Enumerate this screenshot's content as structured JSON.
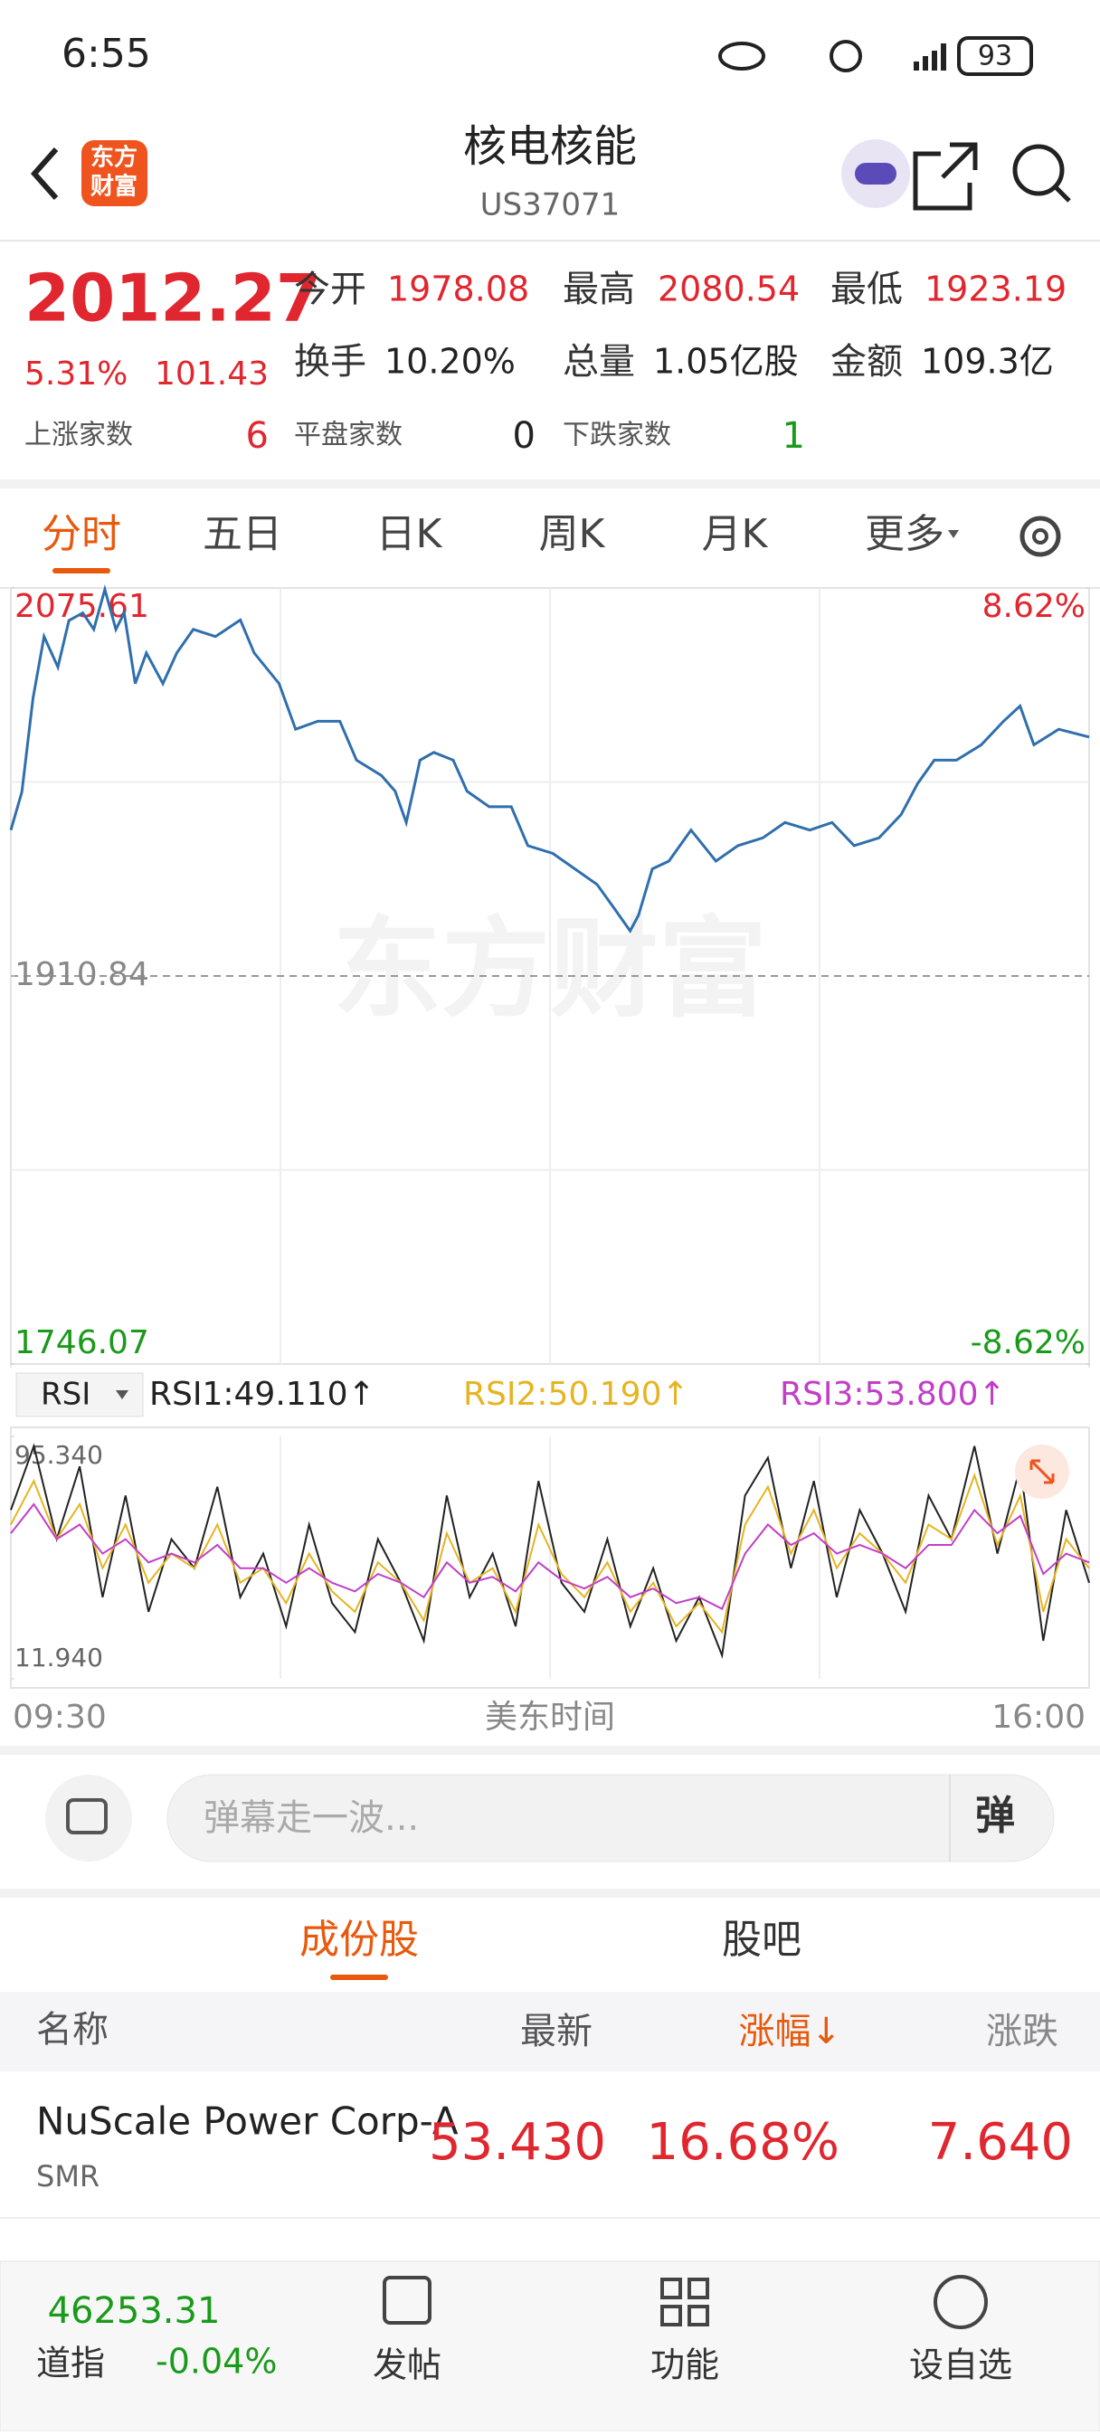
{
  "status_bar": {
    "time": "6:55",
    "battery": "93"
  },
  "header": {
    "logo": [
      "东方",
      "财富"
    ],
    "title": "核电核能",
    "code": "US37071"
  },
  "quote": {
    "price": "2012.27",
    "change_pct": "5.31%",
    "change": "101.43",
    "stats": [
      {
        "label": "今开",
        "value": "1978.08"
      },
      {
        "label": "最高",
        "value": "2080.54"
      },
      {
        "label": "最低",
        "value": "1923.19"
      },
      {
        "label": "换手",
        "value": "10.20%"
      },
      {
        "label": "总量",
        "value": "1.05亿股"
      },
      {
        "label": "金额",
        "value": "109.3亿"
      }
    ],
    "breadth": [
      {
        "label": "上涨家数",
        "value": "6"
      },
      {
        "label": "平盘家数",
        "value": "0"
      },
      {
        "label": "下跌家数",
        "value": "1"
      }
    ]
  },
  "tabs": [
    "分时",
    "五日",
    "日K",
    "周K",
    "月K",
    "更多"
  ],
  "chart_data": [
    {
      "type": "line",
      "watermark": "东方财富",
      "xlabel": "美东时间",
      "grid": true,
      "xlim": [
        0,
        390
      ],
      "xticks": [
        {
          "value": 0,
          "label": "09:30"
        },
        {
          "value": 390,
          "label": "16:00"
        }
      ],
      "ylim": [
        1746.07,
        2075.61
      ],
      "yticks": [
        1746.07,
        1910.84,
        2075.61
      ],
      "baseline": 1910.84,
      "y2lim": [
        -8.62,
        8.62
      ],
      "y2ticks": [
        {
          "value": -8.62,
          "label": "-8.62%"
        },
        {
          "value": 8.62,
          "label": "8.62%"
        }
      ],
      "x": [
        0,
        4,
        8,
        12,
        17,
        21,
        26,
        30,
        34,
        38,
        41,
        45,
        49,
        55,
        60,
        66,
        74,
        83,
        88,
        97,
        103,
        111,
        119,
        125,
        134,
        139,
        143,
        148,
        153,
        160,
        165,
        173,
        181,
        187,
        196,
        204,
        212,
        218,
        224,
        227,
        232,
        238,
        246,
        255,
        263,
        272,
        280,
        289,
        297,
        305,
        314,
        322,
        328,
        334,
        342,
        351,
        359,
        365,
        370,
        379,
        390
      ],
      "series": [
        {
          "color": "#2f6fad",
          "values": [
            1972.8,
            1989,
            2028.8,
            2055,
            2042,
            2061.8,
            2065,
            2058,
            2075,
            2058,
            2065,
            2035,
            2048,
            2035,
            2048,
            2058,
            2055,
            2062,
            2048,
            2035,
            2015.6,
            2019,
            2019,
            2002.5,
            1996,
            1989.3,
            1976,
            2002.5,
            2005.8,
            2002.5,
            1989.3,
            1982.7,
            1982.7,
            1966.2,
            1962.9,
            1956.3,
            1949.7,
            1939.9,
            1930,
            1936.6,
            1956.3,
            1959.6,
            1972.8,
            1959.6,
            1966.2,
            1969.5,
            1976,
            1972.8,
            1976,
            1966.2,
            1969.5,
            1979.4,
            1992.6,
            2002.5,
            2002.5,
            2009,
            2019,
            2025.5,
            2009,
            2015.6,
            2012.3
          ]
        }
      ]
    },
    {
      "type": "line",
      "indicator": "RSI",
      "ylim": [
        11.94,
        95.34
      ],
      "yticks": [
        {
          "value": 95.34,
          "label": "95.340"
        },
        {
          "value": 11.94,
          "label": "11.940"
        }
      ],
      "series": [
        {
          "name": "RSI1:49.110↑",
          "color": "#222222",
          "values": [
            70,
            92,
            60,
            85,
            40,
            75,
            35,
            60,
            50,
            78,
            40,
            55,
            30,
            65,
            38,
            28,
            60,
            45,
            25,
            75,
            40,
            55,
            30,
            80,
            45,
            35,
            60,
            30,
            50,
            25,
            40,
            20,
            75,
            88,
            50,
            80,
            40,
            70,
            55,
            35,
            75,
            60,
            92,
            55,
            85,
            25,
            70,
            45
          ]
        },
        {
          "name": "RSI2:50.190↑",
          "color": "#e6b422",
          "values": [
            65,
            80,
            60,
            72,
            50,
            65,
            45,
            55,
            50,
            65,
            45,
            50,
            38,
            55,
            42,
            35,
            52,
            45,
            32,
            62,
            45,
            50,
            35,
            65,
            48,
            40,
            52,
            35,
            45,
            30,
            38,
            28,
            65,
            78,
            55,
            70,
            50,
            62,
            55,
            45,
            65,
            60,
            82,
            58,
            75,
            35,
            60,
            50
          ]
        },
        {
          "name": "RSI3:53.800↑",
          "color": "#c23ec8",
          "values": [
            62,
            72,
            60,
            65,
            55,
            60,
            52,
            55,
            52,
            58,
            50,
            50,
            45,
            50,
            45,
            42,
            48,
            45,
            40,
            52,
            45,
            47,
            42,
            52,
            46,
            43,
            47,
            40,
            43,
            38,
            40,
            36,
            55,
            65,
            58,
            62,
            55,
            58,
            55,
            50,
            58,
            58,
            70,
            62,
            68,
            48,
            55,
            52
          ]
        }
      ]
    }
  ],
  "comment": {
    "placeholder": "弹幕走一波...",
    "button": "弹"
  },
  "section_tabs": [
    "成份股",
    "股吧"
  ],
  "table": {
    "columns": [
      "名称",
      "最新",
      "涨幅↓",
      "涨跌"
    ],
    "rows": [
      {
        "name": "NuScale Power Corp-A",
        "code": "SMR",
        "price": "53.430",
        "change_pct": "16.68%",
        "change": "7.640"
      }
    ]
  },
  "bottom_nav": {
    "index_value": "46253.31",
    "index_name": "道指",
    "index_change": "-0.04%",
    "items": [
      "发帖",
      "功能",
      "设自选"
    ]
  }
}
